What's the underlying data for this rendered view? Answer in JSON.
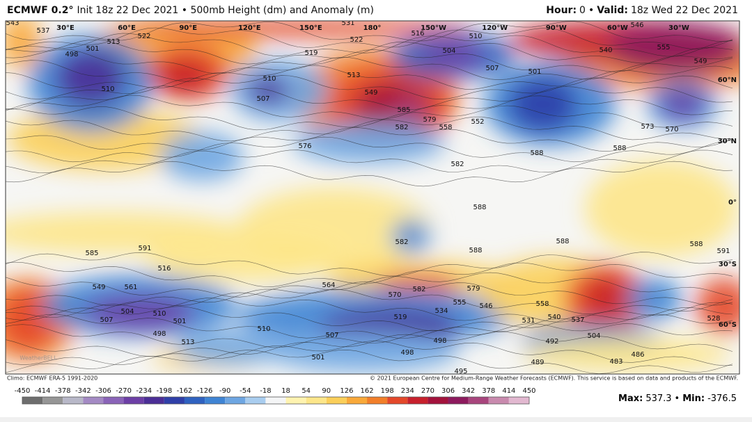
{
  "header": {
    "model": "ECMWF 0.2°",
    "description": "Init 18z 22 Dec 2021 • 500mb Height (dm) and Anomaly (m)",
    "hour_label": "Hour:",
    "hour": "0",
    "separator": "•",
    "valid_label": "Valid:",
    "valid": "18z Wed 22 Dec 2021"
  },
  "map": {
    "longitudes": [
      "30°E",
      "60°E",
      "90°E",
      "120°E",
      "150°E",
      "180°",
      "150°W",
      "120°W",
      "90°W",
      "60°W",
      "30°W"
    ],
    "latitudes": [
      "60°N",
      "30°N",
      "0°",
      "30°S",
      "60°S"
    ],
    "contour_labels": [
      537,
      498,
      501,
      513,
      522,
      510,
      510,
      507,
      513,
      519,
      522,
      531,
      516,
      510,
      504,
      507,
      501,
      549,
      585,
      582,
      579,
      558,
      552,
      576,
      582,
      588,
      588,
      588,
      573,
      570,
      555,
      549,
      540,
      546,
      543,
      591,
      585,
      591,
      588,
      588,
      588,
      582,
      549,
      561,
      504,
      510,
      501,
      498,
      507,
      516,
      564,
      570,
      582,
      579,
      555,
      546,
      534,
      519,
      558,
      540,
      537,
      531,
      498,
      507,
      498,
      501,
      492,
      504,
      489,
      486,
      483,
      495,
      513,
      528,
      510
    ],
    "watermark": "WeatherBELL"
  },
  "footer": {
    "climo": "Climo: ECMWF ERA-5 1991-2020",
    "copyright": "© 2021 European Centre for Medium-Range Weather Forecasts (ECMWF). This service is based on data and products of the ECMWF."
  },
  "colorbar": {
    "ticks": [
      -450,
      -414,
      -378,
      -342,
      -306,
      -270,
      -234,
      -198,
      -162,
      -126,
      -90,
      -54,
      -18,
      18,
      54,
      90,
      126,
      162,
      198,
      234,
      270,
      306,
      342,
      378,
      414,
      450
    ],
    "colors": [
      "#6e6e6e",
      "#969696",
      "#b8b8c8",
      "#a48ac4",
      "#8a64b8",
      "#6d3fa6",
      "#4b2e96",
      "#2f3fa8",
      "#2f62c0",
      "#3f84d4",
      "#6ea6e2",
      "#a9cdef",
      "#f4f5f6",
      "#fff3b0",
      "#fde68a",
      "#fbcf5a",
      "#f9a93a",
      "#f27f2a",
      "#e4482a",
      "#c7202c",
      "#a3123c",
      "#8d1a5e",
      "#a8457d",
      "#c98aae",
      "#e2b8d0"
    ]
  },
  "stats": {
    "max_label": "Max:",
    "max": 537.3,
    "separator": "•",
    "min_label": "Min:",
    "min": -376.5
  }
}
